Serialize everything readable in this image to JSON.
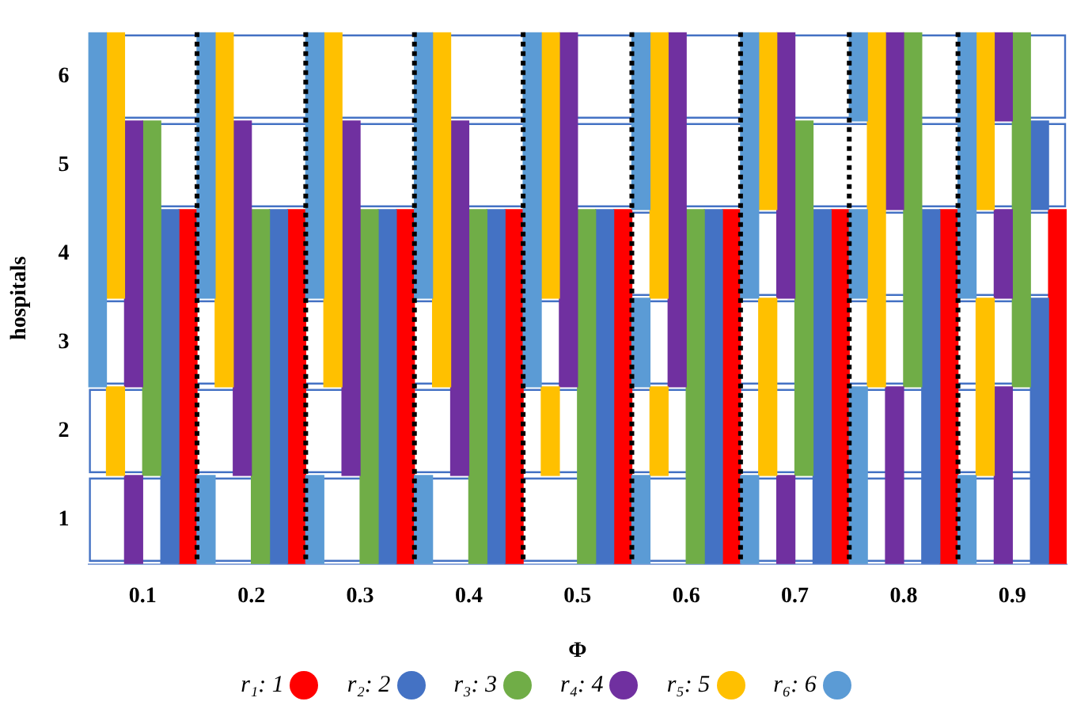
{
  "chart_data": {
    "type": "bar",
    "xlabel": "Φ",
    "ylabel": "hospitals",
    "categories": [
      "0.1",
      "0.2",
      "0.3",
      "0.4",
      "0.5",
      "0.6",
      "0.7",
      "0.8",
      "0.9"
    ],
    "ylim": [
      0.5,
      6.5
    ],
    "yticks": [
      1,
      2,
      3,
      4,
      5,
      6
    ],
    "grid": "x",
    "legend": "bottom",
    "line_style": "dotted",
    "series": [
      {
        "name": "r₆: 6",
        "color": "#5b9bd5",
        "base": [
          2.5,
          3.5,
          3.5,
          3.5,
          2.5,
          4.5,
          3.5,
          5.5,
          3.5
        ],
        "values": [
          4,
          3,
          3,
          3,
          4,
          2,
          3,
          1,
          3
        ]
      },
      {
        "color": "#5b9bd5",
        "base": [
          null,
          0.5,
          0.5,
          0.5,
          null,
          2.5,
          0.5,
          3.5,
          0.5
        ],
        "values": [
          null,
          1,
          1,
          1,
          null,
          1,
          1,
          1,
          1
        ]
      },
      {
        "color": "#5b9bd5",
        "base": [
          null,
          null,
          null,
          null,
          null,
          0.5,
          null,
          0.5,
          null
        ],
        "values": [
          null,
          null,
          null,
          null,
          null,
          1,
          null,
          2,
          null
        ]
      },
      {
        "name": "r₅: 5",
        "color": "#ffc000",
        "base": [
          3.5,
          2.5,
          2.5,
          2.5,
          3.5,
          3.5,
          4.5,
          2.5,
          4.5
        ],
        "values": [
          3,
          4,
          4,
          4,
          3,
          3,
          2,
          4,
          2
        ]
      },
      {
        "color": "#ffc000",
        "base": [
          1.5,
          null,
          null,
          null,
          1.5,
          1.5,
          1.5,
          null,
          1.5
        ],
        "values": [
          1,
          null,
          null,
          null,
          1,
          1,
          2,
          null,
          2
        ]
      },
      {
        "name": "r₄: 4",
        "color": "#7030a0",
        "base": [
          2.5,
          1.5,
          1.5,
          1.5,
          2.5,
          2.5,
          3.5,
          4.5,
          5.5
        ],
        "values": [
          3,
          4,
          4,
          4,
          4,
          4,
          3,
          2,
          1
        ]
      },
      {
        "color": "#7030a0",
        "base": [
          0.5,
          null,
          null,
          null,
          null,
          null,
          0.5,
          0.5,
          3.5
        ],
        "values": [
          1,
          null,
          null,
          null,
          null,
          null,
          1,
          2,
          1
        ]
      },
      {
        "color": "#7030a0",
        "base": [
          null,
          null,
          null,
          null,
          null,
          null,
          null,
          null,
          0.5
        ],
        "values": [
          null,
          null,
          null,
          null,
          null,
          null,
          null,
          null,
          2
        ]
      },
      {
        "name": "r₃: 3",
        "color": "#70ad47",
        "base": [
          1.5,
          0.5,
          0.5,
          0.5,
          0.5,
          0.5,
          1.5,
          2.5,
          2.5
        ],
        "values": [
          4,
          4,
          4,
          4,
          4,
          4,
          4,
          4,
          4
        ]
      },
      {
        "name": "r₂: 2",
        "color": "#4472c4",
        "base": [
          0.5,
          0.5,
          0.5,
          0.5,
          0.5,
          0.5,
          0.5,
          0.5,
          4.5
        ],
        "values": [
          4,
          4,
          4,
          4,
          4,
          4,
          4,
          4,
          1
        ]
      },
      {
        "color": "#4472c4",
        "base": [
          null,
          null,
          null,
          null,
          null,
          null,
          null,
          null,
          0.5
        ],
        "values": [
          null,
          null,
          null,
          null,
          null,
          null,
          null,
          null,
          3
        ]
      },
      {
        "name": "r₁: 1",
        "color": "#ff0000",
        "base": [
          0.5,
          0.5,
          0.5,
          0.5,
          0.5,
          0.5,
          0.5,
          0.5,
          0.5
        ],
        "values": [
          4,
          4,
          4,
          4,
          4,
          4,
          4,
          4,
          4
        ]
      }
    ]
  }
}
